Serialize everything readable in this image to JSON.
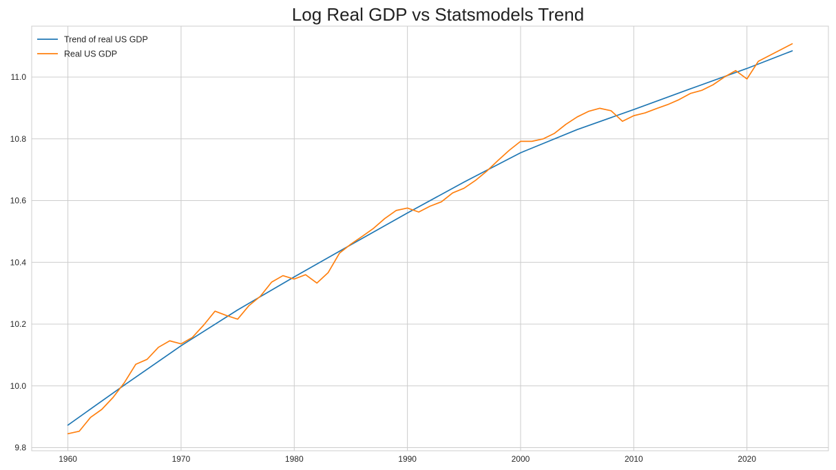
{
  "chart_data": {
    "type": "line",
    "title": "Log Real GDP vs Statsmodels Trend",
    "xlabel": "",
    "ylabel": "",
    "xlim": [
      1956.8,
      2027.2
    ],
    "ylim": [
      9.79,
      11.165
    ],
    "x_ticks": [
      1960,
      1970,
      1980,
      1990,
      2000,
      2010,
      2020
    ],
    "y_ticks": [
      9.8,
      10.0,
      10.2,
      10.4,
      10.6,
      10.8,
      11.0
    ],
    "grid": true,
    "legend_position": "top-left",
    "series": [
      {
        "name": "Trend of real US GDP",
        "color": "#1f77b4",
        "x": [
          1960,
          1965,
          1970,
          1975,
          1980,
          1985,
          1990,
          1995,
          2000,
          2005,
          2010,
          2015,
          2020,
          2024
        ],
        "y": [
          9.873,
          10.003,
          10.13,
          10.246,
          10.353,
          10.457,
          10.56,
          10.66,
          10.755,
          10.83,
          10.895,
          10.962,
          11.028,
          11.085
        ]
      },
      {
        "name": "Real US GDP",
        "color": "#ff7f0e",
        "x": [
          1960,
          1961,
          1962,
          1963,
          1964,
          1965,
          1966,
          1967,
          1968,
          1969,
          1970,
          1971,
          1972,
          1973,
          1974,
          1975,
          1976,
          1977,
          1978,
          1979,
          1980,
          1981,
          1982,
          1983,
          1984,
          1985,
          1986,
          1987,
          1988,
          1989,
          1990,
          1991,
          1992,
          1993,
          1994,
          1995,
          1996,
          1997,
          1998,
          1999,
          2000,
          2001,
          2002,
          2003,
          2004,
          2005,
          2006,
          2007,
          2008,
          2009,
          2010,
          2011,
          2012,
          2013,
          2014,
          2015,
          2016,
          2017,
          2018,
          2019,
          2020,
          2021,
          2022,
          2023,
          2024
        ],
        "y": [
          9.845,
          9.853,
          9.898,
          9.924,
          9.963,
          10.011,
          10.07,
          10.086,
          10.125,
          10.146,
          10.136,
          10.157,
          10.197,
          10.242,
          10.228,
          10.216,
          10.26,
          10.29,
          10.336,
          10.357,
          10.346,
          10.36,
          10.333,
          10.367,
          10.43,
          10.459,
          10.484,
          10.51,
          10.542,
          10.568,
          10.576,
          10.563,
          10.582,
          10.596,
          10.625,
          10.64,
          10.665,
          10.695,
          10.73,
          10.763,
          10.792,
          10.792,
          10.8,
          10.818,
          10.847,
          10.871,
          10.889,
          10.899,
          10.891,
          10.857,
          10.875,
          10.884,
          10.898,
          10.911,
          10.927,
          10.947,
          10.957,
          10.975,
          11.0,
          11.021,
          10.994,
          11.051,
          11.07,
          11.089,
          11.108
        ]
      }
    ]
  }
}
